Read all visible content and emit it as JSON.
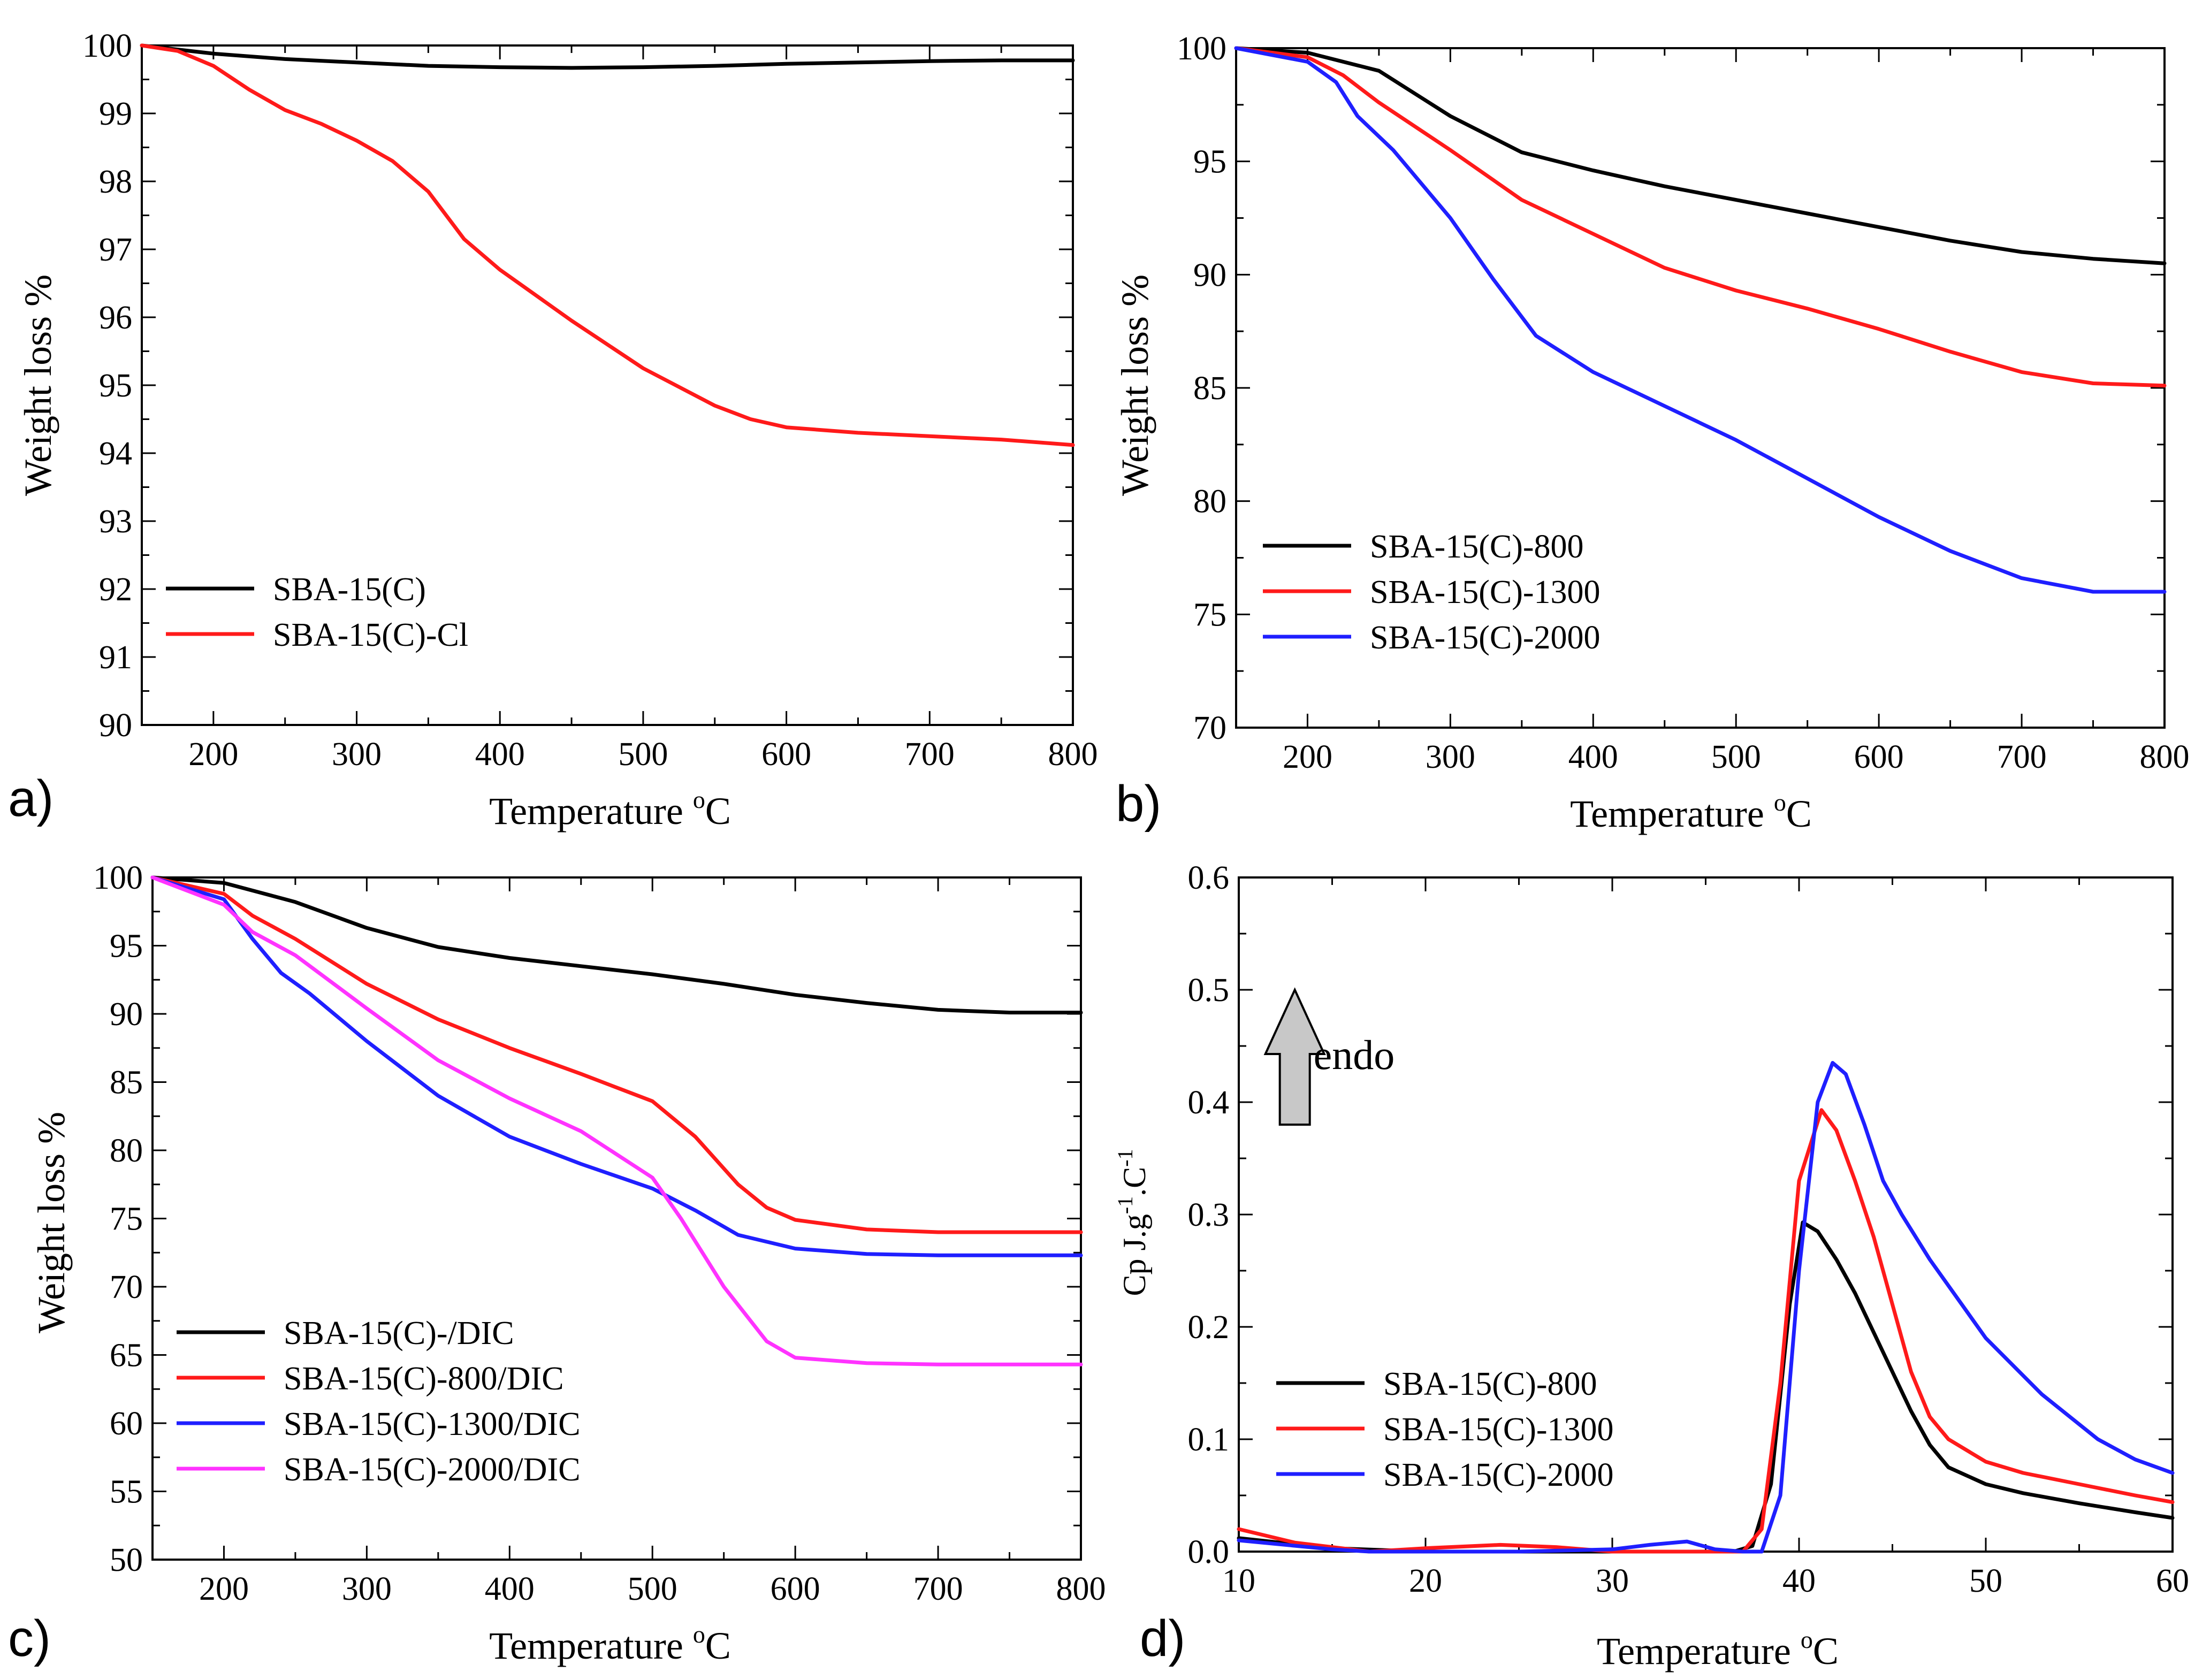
{
  "colors": {
    "black": "#000000",
    "red": "#ff1a1a",
    "blue": "#1f1fff",
    "magenta": "#ff33ff",
    "arrow": "#c8c8c8"
  },
  "chart_data": [
    {
      "id": "a",
      "type": "line",
      "panel_label": "a)",
      "xlabel": "Temperature",
      "xunit_sup": "o",
      "xunit_tail": "C",
      "ylabel": "Weight loss %",
      "xlim": [
        150,
        800
      ],
      "ylim": [
        90,
        100
      ],
      "xticks": [
        200,
        300,
        400,
        500,
        600,
        700,
        800
      ],
      "yticks": [
        90,
        91,
        92,
        93,
        94,
        95,
        96,
        97,
        98,
        99,
        100
      ],
      "legend_position": "bottom-left",
      "series": [
        {
          "name": "SBA-15(C)",
          "color": "#000000",
          "x": [
            150,
            200,
            250,
            300,
            350,
            400,
            450,
            500,
            550,
            600,
            650,
            700,
            750,
            800
          ],
          "y": [
            100,
            99.88,
            99.8,
            99.75,
            99.7,
            99.68,
            99.67,
            99.68,
            99.7,
            99.73,
            99.75,
            99.77,
            99.78,
            99.78
          ]
        },
        {
          "name": "SBA-15(C)-Cl",
          "color": "#ff1a1a",
          "x": [
            150,
            175,
            200,
            225,
            250,
            275,
            300,
            325,
            350,
            375,
            400,
            450,
            500,
            550,
            575,
            600,
            650,
            700,
            750,
            800
          ],
          "y": [
            100,
            99.92,
            99.7,
            99.35,
            99.05,
            98.85,
            98.6,
            98.3,
            97.85,
            97.15,
            96.7,
            95.95,
            95.25,
            94.7,
            94.5,
            94.38,
            94.3,
            94.25,
            94.2,
            94.12
          ]
        }
      ]
    },
    {
      "id": "b",
      "type": "line",
      "panel_label": "b)",
      "xlabel": "Temperature",
      "xunit_sup": "o",
      "xunit_tail": "C",
      "ylabel": "Weight loss %",
      "xlim": [
        150,
        800
      ],
      "ylim": [
        70,
        100
      ],
      "xticks": [
        200,
        300,
        400,
        500,
        600,
        700,
        800
      ],
      "yticks": [
        70,
        75,
        80,
        85,
        90,
        95,
        100
      ],
      "legend_position": "bottom-left",
      "series": [
        {
          "name": "SBA-15(C)-800",
          "color": "#000000",
          "x": [
            150,
            200,
            250,
            300,
            350,
            400,
            450,
            500,
            550,
            600,
            650,
            700,
            750,
            800
          ],
          "y": [
            100,
            99.8,
            99.0,
            97.0,
            95.4,
            94.6,
            93.9,
            93.3,
            92.7,
            92.1,
            91.5,
            91.0,
            90.7,
            90.5
          ]
        },
        {
          "name": "SBA-15(C)-1300",
          "color": "#ff1a1a",
          "x": [
            150,
            200,
            225,
            250,
            300,
            350,
            400,
            450,
            500,
            550,
            600,
            650,
            700,
            750,
            800
          ],
          "y": [
            100,
            99.6,
            98.8,
            97.6,
            95.5,
            93.3,
            91.8,
            90.3,
            89.3,
            88.5,
            87.6,
            86.6,
            85.7,
            85.2,
            85.1
          ]
        },
        {
          "name": "SBA-15(C)-2000",
          "color": "#1f1fff",
          "x": [
            150,
            200,
            220,
            235,
            260,
            300,
            330,
            360,
            400,
            450,
            500,
            550,
            600,
            650,
            700,
            750,
            800
          ],
          "y": [
            100,
            99.4,
            98.5,
            97.0,
            95.5,
            92.5,
            89.8,
            87.3,
            85.7,
            84.2,
            82.7,
            81.0,
            79.3,
            77.8,
            76.6,
            76.0,
            76.0
          ]
        }
      ]
    },
    {
      "id": "c",
      "type": "line",
      "panel_label": "c)",
      "xlabel": "Temperature",
      "xunit_sup": "o",
      "xunit_tail": "C",
      "ylabel": "Weight loss %",
      "xlim": [
        150,
        800
      ],
      "ylim": [
        50,
        100
      ],
      "xticks": [
        200,
        300,
        400,
        500,
        600,
        700,
        800
      ],
      "yticks": [
        50,
        55,
        60,
        65,
        70,
        75,
        80,
        85,
        90,
        95,
        100
      ],
      "legend_position": "bottom-left",
      "series": [
        {
          "name": "SBA-15(C)-/DIC",
          "color": "#000000",
          "x": [
            150,
            200,
            250,
            300,
            350,
            400,
            450,
            500,
            550,
            600,
            650,
            700,
            750,
            800
          ],
          "y": [
            100,
            99.6,
            98.2,
            96.3,
            94.9,
            94.1,
            93.5,
            92.9,
            92.2,
            91.4,
            90.8,
            90.3,
            90.1,
            90.1
          ]
        },
        {
          "name": "SBA-15(C)-800/DIC",
          "color": "#ff1a1a",
          "x": [
            150,
            200,
            220,
            250,
            300,
            350,
            400,
            450,
            500,
            530,
            560,
            580,
            600,
            650,
            700,
            750,
            800
          ],
          "y": [
            100,
            98.8,
            97.2,
            95.5,
            92.2,
            89.6,
            87.5,
            85.6,
            83.6,
            81.0,
            77.5,
            75.8,
            74.9,
            74.2,
            74.0,
            74.0,
            74.0
          ]
        },
        {
          "name": "SBA-15(C)-1300/DIC",
          "color": "#1f1fff",
          "x": [
            150,
            200,
            220,
            240,
            260,
            300,
            350,
            400,
            450,
            500,
            530,
            560,
            600,
            650,
            700,
            750,
            800
          ],
          "y": [
            100,
            98.4,
            95.5,
            93.0,
            91.5,
            88.0,
            84.0,
            81.0,
            79.0,
            77.2,
            75.6,
            73.8,
            72.8,
            72.4,
            72.3,
            72.3,
            72.3
          ]
        },
        {
          "name": "SBA-15(C)-2000/DIC",
          "color": "#ff33ff",
          "x": [
            150,
            200,
            220,
            250,
            300,
            350,
            400,
            450,
            500,
            520,
            550,
            580,
            600,
            650,
            700,
            750,
            800
          ],
          "y": [
            100,
            98.0,
            96.0,
            94.3,
            90.4,
            86.6,
            83.8,
            81.4,
            78.0,
            75.0,
            70.0,
            66.0,
            64.8,
            64.4,
            64.3,
            64.3,
            64.3
          ]
        }
      ]
    },
    {
      "id": "d",
      "type": "line",
      "panel_label": "d)",
      "xlabel": "Temperature",
      "xunit_sup": "o",
      "xunit_tail": "C",
      "ylabel_base": "Cp J.g",
      "ylabel_sup1": "-1",
      "ylabel_mid": ".C",
      "ylabel_sup2": "-1",
      "xlim": [
        10,
        60
      ],
      "ylim": [
        0.0,
        0.6
      ],
      "xticks": [
        10,
        20,
        30,
        40,
        50,
        60
      ],
      "yticks": [
        0.0,
        0.1,
        0.2,
        0.3,
        0.4,
        0.5,
        0.6
      ],
      "ytick_format": 1,
      "legend_position": "bottom-left",
      "annotation": {
        "text": "endo",
        "x": 14,
        "y": 0.44,
        "arrow_x": 13.0,
        "arrow_y_from": 0.38,
        "arrow_y_to": 0.5
      },
      "series": [
        {
          "name": "SBA-15(C)-800",
          "color": "#000000",
          "x": [
            10,
            15,
            20,
            25,
            30,
            35,
            36.5,
            37.5,
            38.5,
            39.5,
            40.2,
            41,
            42,
            43,
            44,
            45,
            46,
            47,
            48,
            50,
            52,
            55,
            58,
            60
          ],
          "y": [
            0.012,
            0.003,
            0.0,
            0.0,
            0.0,
            0.0,
            0.0,
            0.005,
            0.06,
            0.22,
            0.293,
            0.285,
            0.26,
            0.23,
            0.195,
            0.16,
            0.125,
            0.095,
            0.075,
            0.06,
            0.052,
            0.043,
            0.035,
            0.03
          ]
        },
        {
          "name": "SBA-15(C)-1300",
          "color": "#ff1a1a",
          "x": [
            10,
            13,
            17,
            20,
            24,
            27,
            30,
            35,
            37,
            38,
            39,
            40,
            41.2,
            42,
            43,
            44,
            45,
            46,
            47,
            48,
            50,
            52,
            55,
            58,
            60
          ],
          "y": [
            0.02,
            0.008,
            0.0,
            0.003,
            0.006,
            0.004,
            0.0,
            0.0,
            0.0,
            0.02,
            0.15,
            0.33,
            0.393,
            0.375,
            0.33,
            0.28,
            0.22,
            0.16,
            0.12,
            0.1,
            0.08,
            0.07,
            0.06,
            0.05,
            0.044
          ]
        },
        {
          "name": "SBA-15(C)-2000",
          "color": "#1f1fff",
          "x": [
            10,
            15,
            17,
            20,
            25,
            30,
            32,
            34,
            35.5,
            37,
            38,
            39,
            40,
            41,
            41.8,
            42.5,
            43.5,
            44.5,
            45.5,
            47,
            50,
            53,
            56,
            58,
            60
          ],
          "y": [
            0.01,
            0.002,
            0.0,
            0.0,
            0.0,
            0.002,
            0.006,
            0.009,
            0.002,
            0.0,
            0.0,
            0.05,
            0.25,
            0.4,
            0.435,
            0.425,
            0.38,
            0.33,
            0.3,
            0.26,
            0.19,
            0.14,
            0.1,
            0.082,
            0.07
          ]
        }
      ]
    }
  ]
}
